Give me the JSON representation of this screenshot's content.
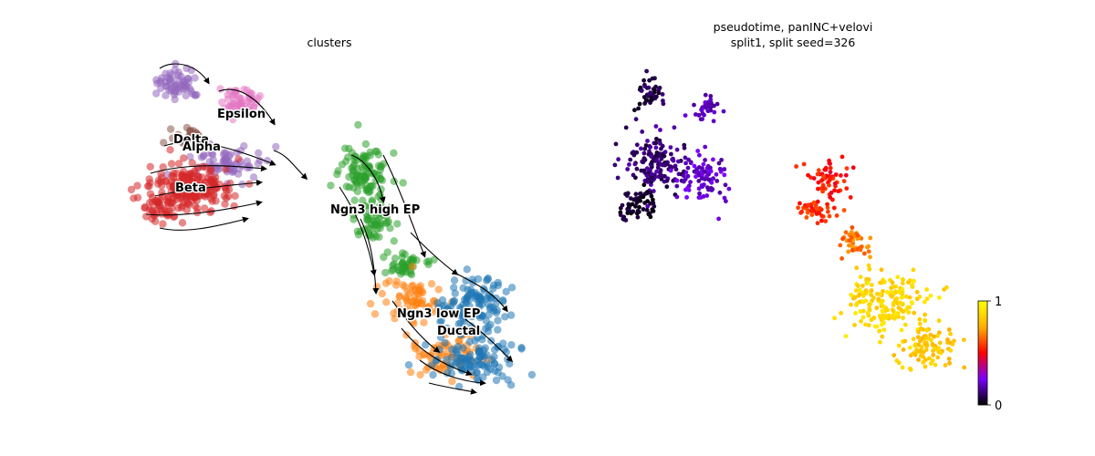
{
  "chart_data": [
    {
      "type": "scatter",
      "title": "clusters",
      "subtype": "umap-embedding-with-velocity-streamlines",
      "xlabel": "",
      "ylabel": "",
      "grid": false,
      "axes_visible": false,
      "legend": "on-data",
      "clusters": [
        {
          "name": "Ductal",
          "color": "#1f77b4"
        },
        {
          "name": "Ngn3 low EP",
          "color": "#ff7f0e"
        },
        {
          "name": "Ngn3 high EP",
          "color": "#2ca02c"
        },
        {
          "name": "Beta",
          "color": "#d62728"
        },
        {
          "name": "Alpha",
          "color": "#9467bd"
        },
        {
          "name": "Delta",
          "color": "#8c564b"
        },
        {
          "name": "Epsilon",
          "color": "#e377c2"
        }
      ],
      "cluster_labels": [
        "Epsilon",
        "Delta",
        "Alpha",
        "Beta",
        "Ngn3 high EP",
        "Ngn3 low EP",
        "Ductal"
      ],
      "streamlines": true
    },
    {
      "type": "scatter",
      "title_lines": [
        "pseudotime, panINC+velovi",
        "split1, split seed=326"
      ],
      "subtype": "umap-embedding-colored-by-continuous-value",
      "xlabel": "",
      "ylabel": "",
      "grid": false,
      "axes_visible": false,
      "colorbar": {
        "colormap": "gnuplot",
        "min": 0,
        "max": 1,
        "tick_labels": [
          "0",
          "1"
        ],
        "colors": [
          "#000000",
          "#7a00ff",
          "#ff0000",
          "#ffb000",
          "#ffff00"
        ],
        "placement": "right"
      }
    }
  ]
}
